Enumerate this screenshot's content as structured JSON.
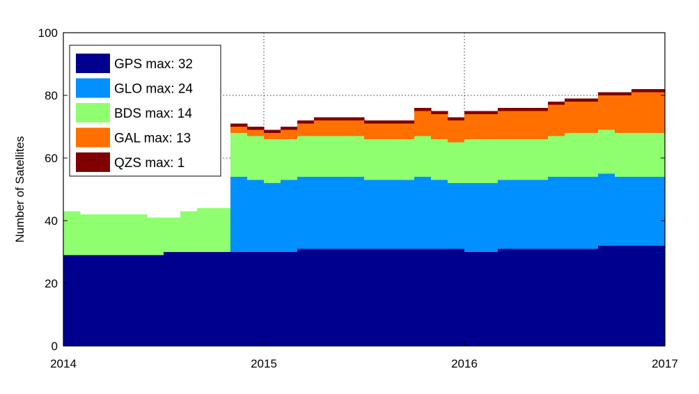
{
  "chart_data": {
    "type": "area",
    "stacked": true,
    "title": "",
    "xlabel": "",
    "ylabel": "Number of Satellites",
    "xlim": [
      2014,
      2017
    ],
    "ylim": [
      0,
      100
    ],
    "xticks": [
      "2014",
      "2015",
      "2016",
      "2017"
    ],
    "yticks": [
      "0",
      "20",
      "40",
      "60",
      "80",
      "100"
    ],
    "grid": true,
    "legend_position": "top-left",
    "x_start": 2014,
    "x_step_months": 1,
    "series": [
      {
        "name": "GPS max: 32",
        "color": "#00008f",
        "values": [
          29,
          29,
          29,
          29,
          29,
          29,
          30,
          30,
          30,
          30,
          30,
          30,
          30,
          30,
          31,
          31,
          31,
          31,
          31,
          31,
          31,
          31,
          31,
          31,
          30,
          30,
          31,
          31,
          31,
          31,
          31,
          31,
          32,
          32,
          32,
          32
        ]
      },
      {
        "name": "GLO max: 24",
        "color": "#0090ff",
        "values": [
          0,
          0,
          0,
          0,
          0,
          0,
          0,
          0,
          0,
          0,
          24,
          23,
          22,
          23,
          23,
          23,
          23,
          23,
          22,
          22,
          22,
          23,
          22,
          21,
          22,
          22,
          22,
          22,
          22,
          23,
          23,
          23,
          23,
          22,
          22,
          22
        ]
      },
      {
        "name": "BDS max: 14",
        "color": "#8fff70",
        "values": [
          14,
          13,
          13,
          13,
          13,
          12,
          11,
          13,
          14,
          14,
          14,
          14,
          14,
          13,
          13,
          13,
          13,
          13,
          13,
          13,
          13,
          13,
          13,
          13,
          14,
          14,
          13,
          13,
          13,
          13,
          14,
          14,
          14,
          14,
          14,
          14
        ]
      },
      {
        "name": "GAL max: 13",
        "color": "#ff7000",
        "values": [
          0,
          0,
          0,
          0,
          0,
          0,
          0,
          0,
          0,
          0,
          2,
          2,
          2,
          3,
          4,
          5,
          5,
          5,
          5,
          5,
          5,
          8,
          8,
          7,
          8,
          8,
          9,
          9,
          9,
          10,
          10,
          10,
          11,
          12,
          13,
          13
        ]
      },
      {
        "name": "QZS max: 1",
        "color": "#800000",
        "values": [
          0,
          0,
          0,
          0,
          0,
          0,
          0,
          0,
          0,
          0,
          1,
          1,
          1,
          1,
          1,
          1,
          1,
          1,
          1,
          1,
          1,
          1,
          1,
          1,
          1,
          1,
          1,
          1,
          1,
          1,
          1,
          1,
          1,
          1,
          1,
          1
        ]
      }
    ]
  }
}
